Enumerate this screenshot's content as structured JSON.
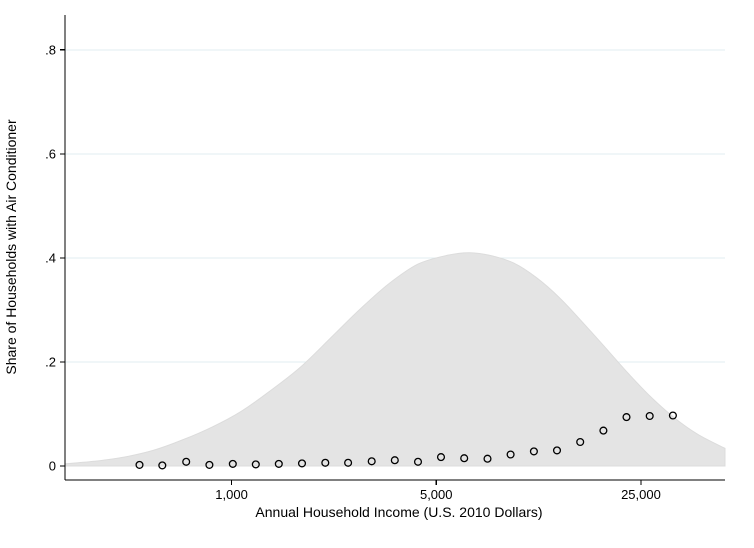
{
  "chart_data": {
    "type": "area+scatter",
    "xlabel": "Annual Household Income (U.S. 2010 Dollars)",
    "ylabel": "Share of Households with Air Conditioner",
    "x_scale": "log",
    "xlim": [
      270,
      48400
    ],
    "ylim": [
      -0.027,
      0.867
    ],
    "x_ticks": [
      {
        "value": 1000,
        "label": "1,000"
      },
      {
        "value": 5000,
        "label": "5,000"
      },
      {
        "value": 25000,
        "label": "25,000"
      }
    ],
    "y_ticks": [
      {
        "value": 0,
        "label": "0"
      },
      {
        "value": 0.2,
        "label": ".2"
      },
      {
        "value": 0.4,
        "label": ".4"
      },
      {
        "value": 0.6,
        "label": ".6"
      },
      {
        "value": 0.8,
        "label": ".8"
      }
    ],
    "grid": {
      "axis": "y",
      "color": "#e0eef0"
    },
    "colors": {
      "area_fill": "#e4e4e4",
      "area_edge": "#dcdcdc",
      "marker_stroke": "#000000",
      "axis": "#000000"
    },
    "legend": "none",
    "series": [
      {
        "name": "income-density-curve",
        "type": "area",
        "points": [
          [
            270,
            0.004
          ],
          [
            340,
            0.009
          ],
          [
            430,
            0.017
          ],
          [
            540,
            0.03
          ],
          [
            680,
            0.05
          ],
          [
            860,
            0.075
          ],
          [
            1080,
            0.105
          ],
          [
            1360,
            0.145
          ],
          [
            1720,
            0.19
          ],
          [
            2170,
            0.245
          ],
          [
            2730,
            0.3
          ],
          [
            3440,
            0.35
          ],
          [
            4330,
            0.388
          ],
          [
            5460,
            0.405
          ],
          [
            6500,
            0.41
          ],
          [
            7750,
            0.404
          ],
          [
            9200,
            0.39
          ],
          [
            11000,
            0.362
          ],
          [
            13200,
            0.323
          ],
          [
            15800,
            0.276
          ],
          [
            19000,
            0.226
          ],
          [
            22700,
            0.177
          ],
          [
            27200,
            0.131
          ],
          [
            32600,
            0.092
          ],
          [
            39000,
            0.061
          ],
          [
            46700,
            0.038
          ],
          [
            48400,
            0.034
          ]
        ]
      },
      {
        "name": "share-with-air-conditioner",
        "type": "scatter",
        "marker": "open-circle",
        "points": [
          [
            485,
            0.002
          ],
          [
            580,
            0.001
          ],
          [
            700,
            0.008
          ],
          [
            840,
            0.002
          ],
          [
            1010,
            0.004
          ],
          [
            1210,
            0.003
          ],
          [
            1450,
            0.004
          ],
          [
            1740,
            0.005
          ],
          [
            2090,
            0.006
          ],
          [
            2500,
            0.006
          ],
          [
            3010,
            0.009
          ],
          [
            3610,
            0.011
          ],
          [
            4330,
            0.008
          ],
          [
            5190,
            0.017
          ],
          [
            6230,
            0.015
          ],
          [
            7480,
            0.014
          ],
          [
            8970,
            0.022
          ],
          [
            10770,
            0.028
          ],
          [
            12920,
            0.03
          ],
          [
            15500,
            0.046
          ],
          [
            18600,
            0.068
          ],
          [
            22320,
            0.094
          ],
          [
            26780,
            0.096
          ],
          [
            32140,
            0.097
          ]
        ]
      }
    ]
  }
}
